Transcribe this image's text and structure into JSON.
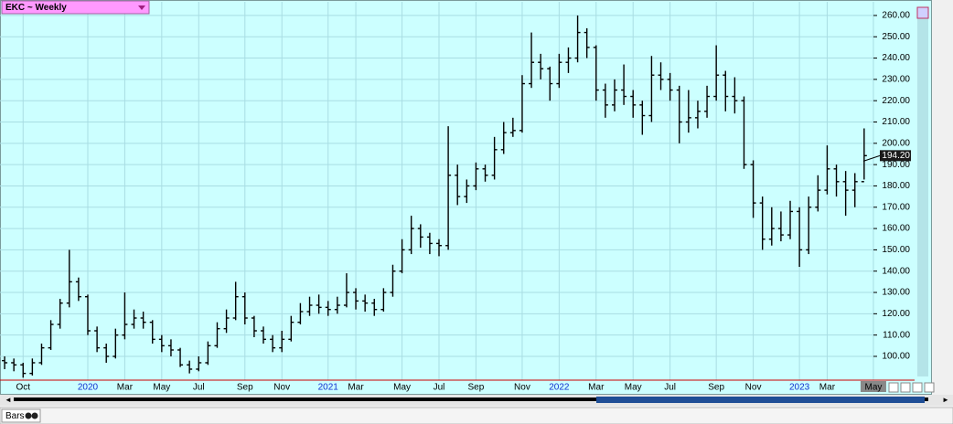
{
  "chart_data": {
    "type": "ohlc",
    "title": "EKC ~ Weekly",
    "categories": [
      null,
      null,
      "Oct",
      null,
      null,
      null,
      null,
      null,
      null,
      "2020",
      null,
      null,
      null,
      "Mar",
      null,
      null,
      null,
      "May",
      null,
      null,
      null,
      "Jul",
      null,
      null,
      null,
      null,
      "Sep",
      null,
      null,
      null,
      "Nov",
      null,
      null,
      null,
      null,
      "2021",
      null,
      null,
      "Mar",
      null,
      null,
      null,
      null,
      "May",
      null,
      null,
      null,
      "Jul",
      null,
      null,
      null,
      "Sep",
      null,
      null,
      null,
      null,
      "Nov",
      null,
      null,
      null,
      "2022",
      null,
      null,
      null,
      "Mar",
      null,
      null,
      null,
      "May",
      null,
      null,
      null,
      "Jul",
      null,
      null,
      null,
      null,
      "Sep",
      null,
      null,
      null,
      "Nov",
      null,
      null,
      null,
      null,
      "2023",
      null,
      null,
      "Mar",
      null,
      null,
      null,
      null,
      "May"
    ],
    "open": [
      98,
      97,
      96,
      92,
      97,
      104,
      115,
      125,
      135,
      128,
      112,
      104,
      100,
      110,
      115,
      118,
      116,
      108,
      105,
      103,
      96,
      94,
      97,
      105,
      113,
      118,
      128,
      118,
      112,
      108,
      104,
      108,
      116,
      121,
      124,
      123,
      122,
      124,
      130,
      126,
      125,
      122,
      130,
      140,
      150,
      160,
      156,
      153,
      152,
      185,
      175,
      180,
      188,
      185,
      197,
      205,
      206,
      228,
      238,
      235,
      228,
      238,
      240,
      252,
      245,
      225,
      218,
      225,
      222,
      218,
      213,
      232,
      230,
      225,
      210,
      212,
      215,
      222,
      232,
      222,
      220,
      190,
      172,
      155,
      160,
      157,
      168,
      150,
      170,
      178,
      188,
      182,
      178,
      182,
      null
    ],
    "high": [
      100,
      99,
      97,
      99,
      106,
      117,
      127,
      150,
      137,
      129,
      114,
      106,
      113,
      130,
      122,
      121,
      117,
      110,
      108,
      104,
      98,
      100,
      107,
      116,
      122,
      135,
      130,
      119,
      114,
      110,
      112,
      119,
      125,
      128,
      129,
      126,
      128,
      139,
      132,
      129,
      127,
      132,
      143,
      155,
      166,
      162,
      158,
      155,
      208,
      190,
      183,
      191,
      190,
      203,
      210,
      212,
      232,
      252,
      242,
      236,
      242,
      245,
      260,
      254,
      246,
      228,
      230,
      237,
      225,
      220,
      241,
      238,
      233,
      227,
      225,
      220,
      227,
      246,
      234,
      231,
      222,
      192,
      175,
      170,
      168,
      173,
      170,
      175,
      185,
      199,
      190,
      187,
      186,
      207,
      null
    ],
    "low": [
      94,
      93,
      90,
      91,
      96,
      103,
      113,
      123,
      126,
      110,
      102,
      97,
      99,
      108,
      113,
      113,
      106,
      102,
      100,
      95,
      92,
      93,
      96,
      104,
      111,
      117,
      115,
      109,
      106,
      102,
      102,
      107,
      115,
      119,
      120,
      119,
      120,
      123,
      122,
      121,
      119,
      121,
      128,
      139,
      148,
      151,
      148,
      147,
      150,
      171,
      172,
      178,
      182,
      183,
      195,
      203,
      205,
      226,
      230,
      220,
      226,
      233,
      238,
      240,
      220,
      212,
      215,
      218,
      212,
      204,
      210,
      225,
      220,
      200,
      205,
      207,
      212,
      220,
      215,
      214,
      188,
      165,
      150,
      152,
      154,
      155,
      142,
      148,
      168,
      176,
      175,
      166,
      170,
      183,
      null
    ],
    "close": [
      97,
      96,
      92,
      97,
      104,
      115,
      125,
      135,
      128,
      112,
      104,
      100,
      110,
      115,
      118,
      116,
      108,
      105,
      103,
      96,
      94,
      97,
      105,
      113,
      118,
      128,
      118,
      112,
      108,
      104,
      108,
      116,
      121,
      124,
      123,
      122,
      124,
      130,
      126,
      125,
      122,
      130,
      140,
      150,
      160,
      156,
      153,
      152,
      185,
      175,
      180,
      188,
      185,
      197,
      205,
      206,
      228,
      238,
      235,
      228,
      238,
      240,
      252,
      245,
      225,
      218,
      225,
      222,
      218,
      213,
      232,
      230,
      225,
      210,
      212,
      215,
      222,
      232,
      222,
      220,
      190,
      172,
      155,
      160,
      157,
      168,
      150,
      170,
      178,
      188,
      182,
      178,
      182,
      194.2,
      null
    ],
    "last_price": {
      "value": 194.2,
      "label": "194.20"
    },
    "color": "#000000",
    "ylim": [
      89.7,
      266.4
    ],
    "yticks": [
      {
        "value": 100,
        "label": "100.00"
      },
      {
        "value": 110,
        "label": "110.00"
      },
      {
        "value": 120,
        "label": "120.00"
      },
      {
        "value": 130,
        "label": "130.00"
      },
      {
        "value": 140,
        "label": "140.00"
      },
      {
        "value": 150,
        "label": "150.00"
      },
      {
        "value": 160,
        "label": "160.00"
      },
      {
        "value": 170,
        "label": "170.00"
      },
      {
        "value": 180,
        "label": "180.00"
      },
      {
        "value": 190,
        "label": "190.00"
      },
      {
        "value": 200,
        "label": "200.00"
      },
      {
        "value": 210,
        "label": "210.00"
      },
      {
        "value": 220,
        "label": "220.00"
      },
      {
        "value": 230,
        "label": "230.00"
      },
      {
        "value": 240,
        "label": "240.00"
      },
      {
        "value": 250,
        "label": "250.00"
      },
      {
        "value": 260,
        "label": "260.00"
      }
    ],
    "grid": true
  },
  "status": {
    "mode": "Bars"
  }
}
